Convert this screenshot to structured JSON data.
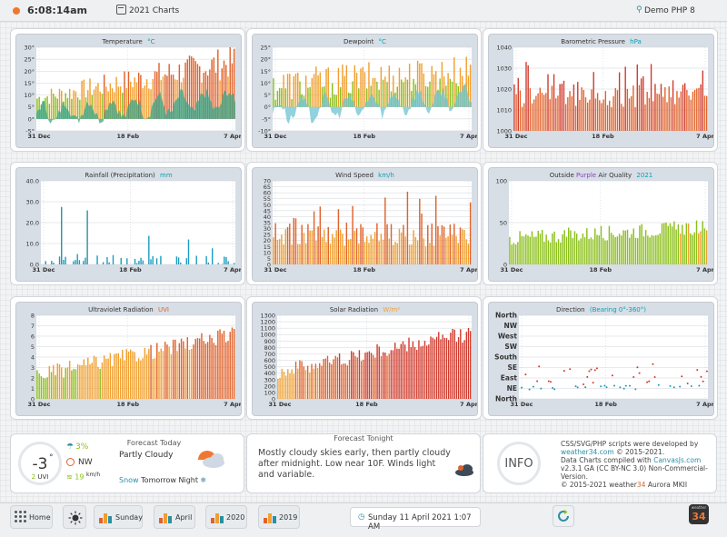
{
  "header": {
    "time": "6:08:14am",
    "page_title": "2021 Charts",
    "site": "Demo PHP 8"
  },
  "charts": [
    {
      "id": "temperature",
      "title": "Temperature",
      "unit": "°C",
      "unit_color": "#00a4b4",
      "ylabels": [
        "30°",
        "25°",
        "20°",
        "15°",
        "10°",
        "5°",
        "0°",
        "-5°"
      ],
      "ymin": -5,
      "ymax": 30,
      "xlabels": [
        "31 Dec",
        "18 Feb",
        "7 Apr"
      ],
      "style": "temp"
    },
    {
      "id": "dewpoint",
      "title": "Dewpoint",
      "unit": "°C",
      "unit_color": "#00a4b4",
      "ylabels": [
        "25°",
        "20°",
        "15°",
        "10°",
        "5°",
        "0°",
        "-5°",
        "-10°"
      ],
      "ymin": -10,
      "ymax": 25,
      "xlabels": [
        "31 Dec",
        "18 Feb",
        "7 Apr"
      ],
      "style": "dew"
    },
    {
      "id": "pressure",
      "title": "Barometric Pressure",
      "unit": "hPa",
      "unit_color": "#00a4b4",
      "ylabels": [
        "1040",
        "1030",
        "1020",
        "1010",
        "1000"
      ],
      "ymin": 1000,
      "ymax": 1040,
      "xlabels": [
        "31 Dec",
        "18 Feb",
        "7 Apr"
      ],
      "style": "pressure"
    },
    {
      "id": "rainfall",
      "title": "Rainfall (Precipitation)",
      "unit": "mm",
      "unit_color": "#00a4b4",
      "ylabels": [
        "40.0",
        "30.0",
        "20.0",
        "10.0",
        "0.0"
      ],
      "ymin": 0,
      "ymax": 40,
      "xlabels": [
        "31 Dec",
        "18 Feb",
        "7 Apr"
      ],
      "style": "rain"
    },
    {
      "id": "windspeed",
      "title": "Wind Speed",
      "unit": "km/h",
      "unit_color": "#00a4b4",
      "ylabels": [
        "70",
        "65",
        "60",
        "55",
        "50",
        "45",
        "40",
        "35",
        "30",
        "25",
        "20",
        "15",
        "10",
        "5",
        "0"
      ],
      "ymin": 0,
      "ymax": 70,
      "xlabels": [
        "31 Dec",
        "18 Feb",
        "7 Apr"
      ],
      "style": "wind"
    },
    {
      "id": "airquality",
      "title": "Outside",
      "title_purple": "Purple",
      "title_tail": "Air Quality",
      "unit": "2021",
      "unit_color": "#00a4b4",
      "ylabels": [
        "100",
        "50",
        "0"
      ],
      "ymin": 0,
      "ymax": 100,
      "xlabels": [
        "31 Dec",
        "18 Feb",
        "7 Apr"
      ],
      "style": "aq"
    },
    {
      "id": "uv",
      "title": "Ultraviolet Radiation",
      "unit": "UVI",
      "unit_color": "#e0622b",
      "ylabels": [
        "8",
        "7",
        "6",
        "5",
        "4",
        "3",
        "2",
        "1",
        "0"
      ],
      "ymin": 0,
      "ymax": 8,
      "xlabels": [
        "31 Dec",
        "18 Feb",
        "7 Apr"
      ],
      "style": "uv"
    },
    {
      "id": "solar",
      "title": "Solar Radiation",
      "unit": "W/m²",
      "unit_color": "#f0a030",
      "ylabels": [
        "1300",
        "1200",
        "1100",
        "1000",
        "900",
        "800",
        "700",
        "600",
        "500",
        "400",
        "300",
        "200",
        "100",
        "0"
      ],
      "ymin": 0,
      "ymax": 1300,
      "xlabels": [
        "31 Dec",
        "18 Feb",
        "7 Apr"
      ],
      "style": "solar"
    },
    {
      "id": "direction",
      "title": "Direction",
      "unit": "(Bearing 0°-360°)",
      "unit_color": "#00a4b4",
      "ylabels": [
        "North",
        "NW",
        "West",
        "SW",
        "South",
        "SE",
        "East",
        "NE",
        "North"
      ],
      "ymin": 0,
      "ymax": 360,
      "xlabels": [
        "31 Dec",
        "18 Feb",
        "7 Apr"
      ],
      "style": "dir"
    }
  ],
  "colors": {
    "green": "#8bbf1a",
    "orange": "#f0a030",
    "deep": "#e0622b",
    "red": "#d0392b",
    "teal": "#2a8fa5",
    "blue": "#1a9bbf",
    "grey": "#bdbdbd"
  },
  "current": {
    "temp": "-3",
    "temp_deg": "°",
    "uvi_value": "2",
    "uvi_label": "UVI",
    "rain_pct": "3%",
    "wind_dir": "NW",
    "wind_speed": "19",
    "wind_unit": "km/h"
  },
  "forecast_today": {
    "title": "Forecast Today",
    "condition": "Partly Cloudy",
    "snow_word": "Snow",
    "snow_rest": "Tomorrow Night"
  },
  "forecast_tonight": {
    "title": "Forecast Tonight",
    "text": "Mostly cloudy skies early, then partly cloudy after midnight. Low near 10F. Winds light and variable."
  },
  "info": {
    "label": "INFO",
    "line1": "CSS/SVG/PHP scripts were developed by",
    "link1": "weather34.com",
    "line1b": "© 2015-2021.",
    "line2": "Data Charts compiled with",
    "link2": "CanvasJs.com",
    "line3": "v2.3.1 GA (CC BY-NC 3.0) Non-Commercial-Version.",
    "line4": "© 2015-2021 weather",
    "line4b": "34",
    "line4c": "Aurora MKII"
  },
  "nav": {
    "home": "Home",
    "sunday": "Sunday",
    "april": "April",
    "y2020": "2020",
    "y2019": "2019",
    "date": "Sunday 11 April 2021 1:07 AM"
  },
  "logo": {
    "small": "weather",
    "num": "34"
  }
}
